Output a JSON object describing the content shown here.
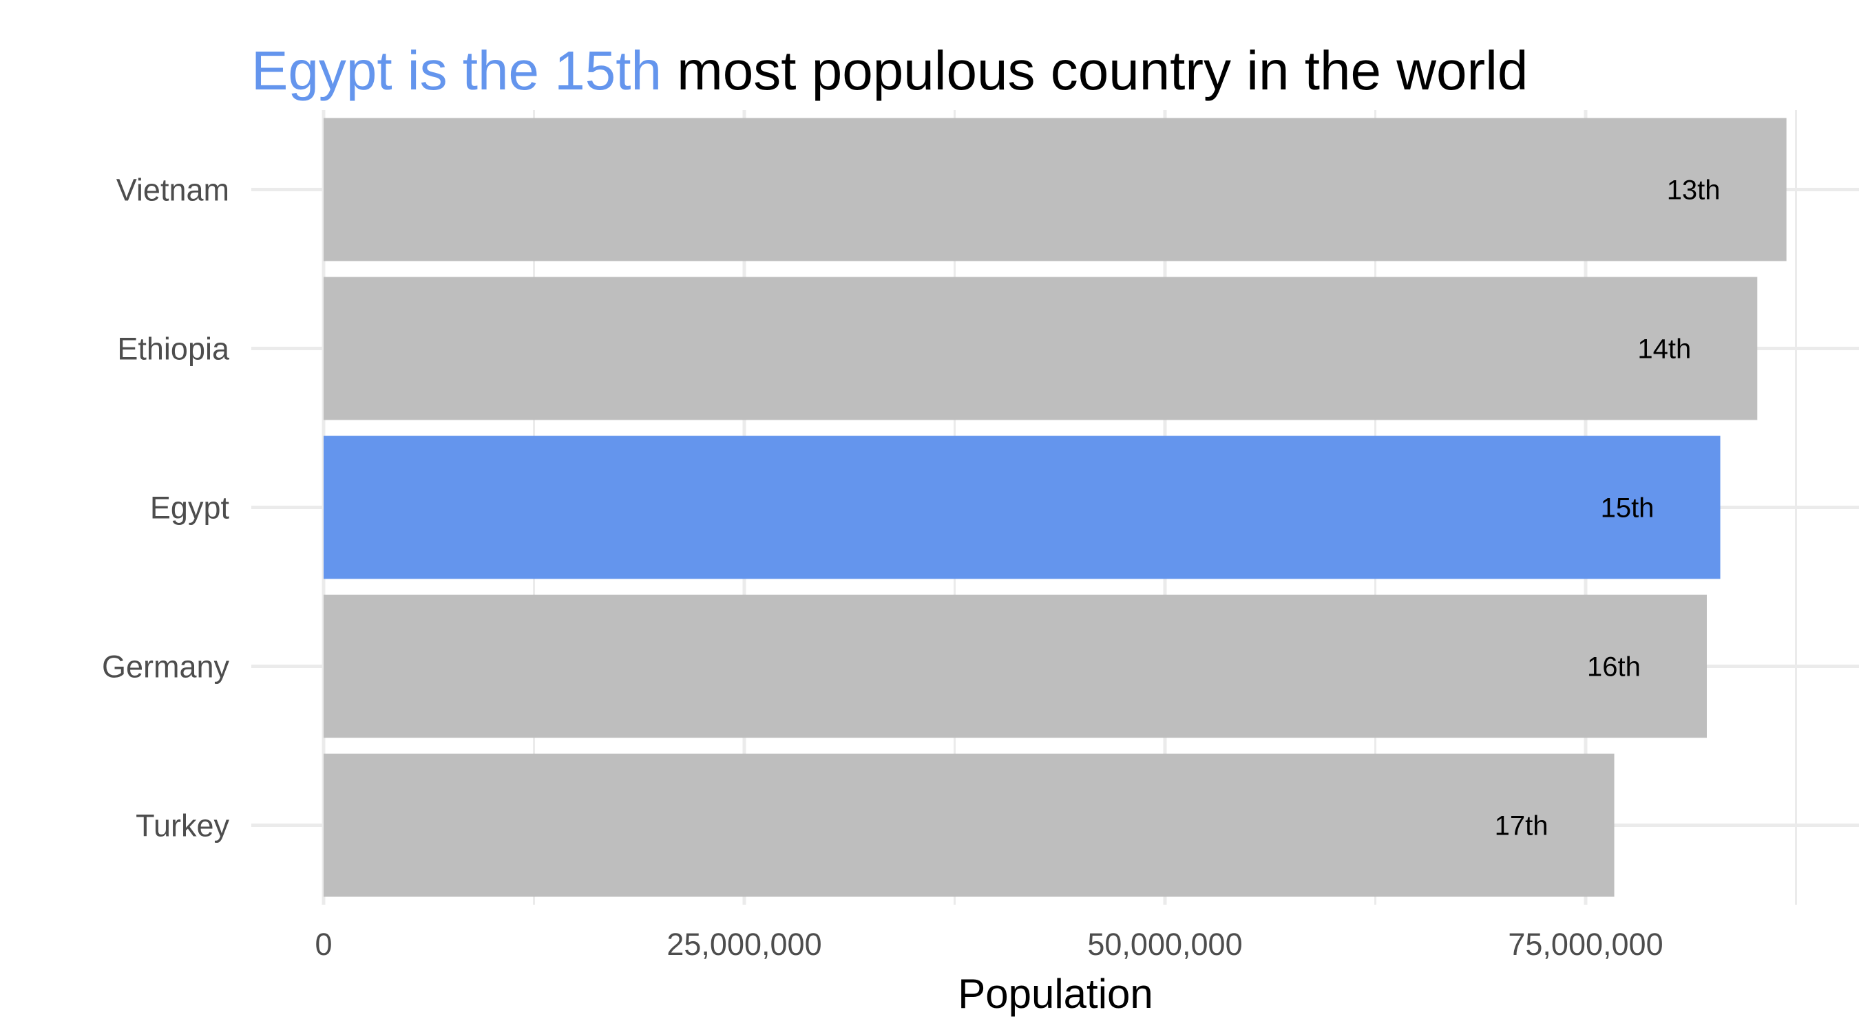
{
  "chart_data": {
    "type": "bar",
    "orientation": "horizontal",
    "title": {
      "highlight": "Egypt is the 15th",
      "rest": " most populous country in the world"
    },
    "xlabel": "Population",
    "ylabel": "",
    "categories": [
      "Vietnam",
      "Ethiopia",
      "Egypt",
      "Germany",
      "Turkey"
    ],
    "values": [
      86932500,
      85200000,
      83000000,
      82200000,
      76700000
    ],
    "rank_labels": [
      "13th",
      "14th",
      "15th",
      "16th",
      "17th"
    ],
    "highlight_category": "Egypt",
    "xlim": [
      0,
      90000000
    ],
    "x_ticks": [
      0,
      25000000,
      50000000,
      75000000
    ],
    "x_tick_labels": [
      "0",
      "25,000,000",
      "50,000,000",
      "75,000,000"
    ],
    "grid": true,
    "legend": "none",
    "colors": {
      "highlight": "#6495ED",
      "default": "#BEBEBE"
    }
  }
}
